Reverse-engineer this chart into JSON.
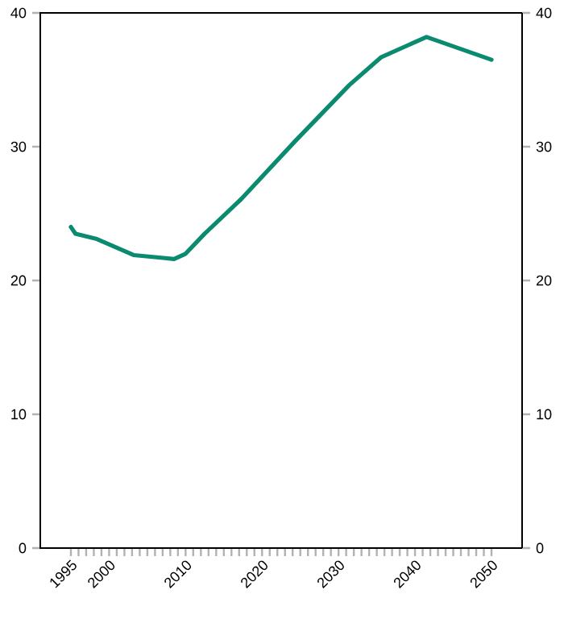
{
  "chart_data": {
    "type": "line",
    "x": [
      1995,
      1995.6,
      1998.4,
      2003.2,
      2006.8,
      2008.5,
      2010,
      2012.5,
      2017.3,
      2024.3,
      2031.4,
      2035.6,
      2041.5,
      2050
    ],
    "series": [
      {
        "color": "#0a8a6e",
        "values": [
          24.0,
          23.5,
          23.1,
          21.9,
          21.7,
          21.6,
          22.0,
          23.5,
          26.1,
          30.4,
          34.6,
          36.7,
          38.2,
          36.5
        ]
      }
    ],
    "xlim": [
      1991,
      2054
    ],
    "xticks": [
      1995,
      {
        "value": 1996,
        "label": null
      },
      {
        "value": 1997,
        "label": null
      },
      {
        "value": 1998,
        "label": null
      },
      {
        "value": 1999,
        "label": null
      },
      2000,
      {
        "value": 2001,
        "label": null
      },
      {
        "value": 2002,
        "label": null
      },
      {
        "value": 2003,
        "label": null
      },
      {
        "value": 2004,
        "label": null
      },
      {
        "value": 2005,
        "label": null
      },
      {
        "value": 2006,
        "label": null
      },
      {
        "value": 2007,
        "label": null
      },
      {
        "value": 2008,
        "label": null
      },
      {
        "value": 2009,
        "label": null
      },
      2010,
      {
        "value": 2011,
        "label": null
      },
      {
        "value": 2012,
        "label": null
      },
      {
        "value": 2013,
        "label": null
      },
      {
        "value": 2014,
        "label": null
      },
      {
        "value": 2015,
        "label": null
      },
      {
        "value": 2016,
        "label": null
      },
      {
        "value": 2017,
        "label": null
      },
      {
        "value": 2018,
        "label": null
      },
      {
        "value": 2019,
        "label": null
      },
      2020,
      {
        "value": 2021,
        "label": null
      },
      {
        "value": 2022,
        "label": null
      },
      {
        "value": 2023,
        "label": null
      },
      {
        "value": 2024,
        "label": null
      },
      {
        "value": 2025,
        "label": null
      },
      {
        "value": 2026,
        "label": null
      },
      {
        "value": 2027,
        "label": null
      },
      {
        "value": 2028,
        "label": null
      },
      {
        "value": 2029,
        "label": null
      },
      2030,
      {
        "value": 2031,
        "label": null
      },
      {
        "value": 2032,
        "label": null
      },
      {
        "value": 2033,
        "label": null
      },
      {
        "value": 2034,
        "label": null
      },
      {
        "value": 2035,
        "label": null
      },
      {
        "value": 2036,
        "label": null
      },
      {
        "value": 2037,
        "label": null
      },
      {
        "value": 2038,
        "label": null
      },
      {
        "value": 2039,
        "label": null
      },
      2040,
      {
        "value": 2041,
        "label": null
      },
      {
        "value": 2042,
        "label": null
      },
      {
        "value": 2043,
        "label": null
      },
      {
        "value": 2044,
        "label": null
      },
      {
        "value": 2045,
        "label": null
      },
      {
        "value": 2046,
        "label": null
      },
      {
        "value": 2047,
        "label": null
      },
      {
        "value": 2048,
        "label": null
      },
      {
        "value": 2049,
        "label": null
      },
      2050
    ],
    "ylim": [
      0,
      40
    ],
    "yticks": [
      0,
      10,
      20,
      30,
      40
    ],
    "y2lim": [
      0,
      40
    ],
    "y2ticks": [
      0,
      10,
      20,
      30,
      40
    ],
    "grid": false,
    "marker": "none",
    "line_style": "solid"
  }
}
